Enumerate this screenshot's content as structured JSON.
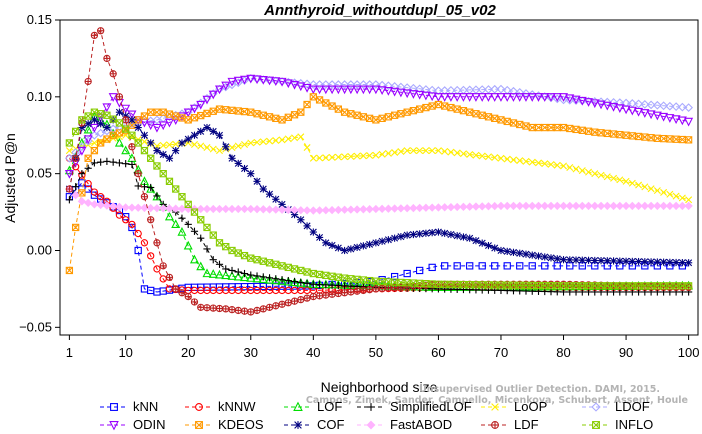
{
  "chart_data": {
    "type": "line",
    "title": "Annthyroid_withoutdupl_05_v02",
    "xlabel": "Neighborhood size",
    "ylabel": "Adjusted P@n",
    "xlim": [
      1,
      100
    ],
    "ylim": [
      -0.05,
      0.15
    ],
    "x_ticks": [
      1,
      10,
      20,
      30,
      40,
      50,
      60,
      70,
      80,
      90,
      100
    ],
    "y_ticks": [
      -0.05,
      0.0,
      0.05,
      0.1,
      0.15
    ],
    "x_tick_labels": [
      "1",
      "10",
      "20",
      "30",
      "40",
      "50",
      "60",
      "70",
      "80",
      "90",
      "100"
    ],
    "y_tick_labels": [
      "−0.05",
      "0.00",
      "0.05",
      "0.10",
      "0.15"
    ],
    "grid": false,
    "legend_position": "bottom",
    "series": [
      {
        "name": "kNN",
        "color": "#0000ff",
        "marker": "square",
        "dash": "4,3",
        "key_points": [
          [
            1,
            0.035
          ],
          [
            3,
            0.044
          ],
          [
            5,
            0.036
          ],
          [
            7,
            0.031
          ],
          [
            9,
            0.026
          ],
          [
            10,
            0.022
          ],
          [
            11,
            0.015
          ],
          [
            12,
            0.0
          ],
          [
            13,
            -0.025
          ],
          [
            15,
            -0.027
          ],
          [
            20,
            -0.024
          ],
          [
            40,
            -0.023
          ],
          [
            50,
            -0.02
          ],
          [
            55,
            -0.015
          ],
          [
            58,
            -0.012
          ],
          [
            60,
            -0.01
          ],
          [
            100,
            -0.01
          ]
        ]
      },
      {
        "name": "kNNW",
        "color": "#ff0000",
        "marker": "circle",
        "dash": "4,3",
        "key_points": [
          [
            1,
            0.06
          ],
          [
            3,
            0.049
          ],
          [
            5,
            0.038
          ],
          [
            7,
            0.032
          ],
          [
            9,
            0.023
          ],
          [
            11,
            0.017
          ],
          [
            13,
            0.005
          ],
          [
            15,
            -0.012
          ],
          [
            17,
            -0.025
          ],
          [
            20,
            -0.026
          ],
          [
            40,
            -0.026
          ],
          [
            60,
            -0.024
          ],
          [
            100,
            -0.024
          ]
        ]
      },
      {
        "name": "LOF",
        "color": "#00dd00",
        "marker": "triangle-up",
        "dash": "4,3",
        "key_points": [
          [
            1,
            0.052
          ],
          [
            3,
            0.07
          ],
          [
            5,
            0.087
          ],
          [
            7,
            0.082
          ],
          [
            9,
            0.07
          ],
          [
            11,
            0.06
          ],
          [
            13,
            0.045
          ],
          [
            15,
            0.035
          ],
          [
            17,
            0.022
          ],
          [
            19,
            0.012
          ],
          [
            21,
            -0.006
          ],
          [
            23,
            -0.015
          ],
          [
            30,
            -0.018
          ],
          [
            40,
            -0.022
          ],
          [
            60,
            -0.024
          ],
          [
            100,
            -0.023
          ]
        ]
      },
      {
        "name": "SimplifiedLOF",
        "color": "#000000",
        "marker": "plus",
        "dash": "4,3",
        "key_points": [
          [
            1,
            0.033
          ],
          [
            3,
            0.05
          ],
          [
            5,
            0.057
          ],
          [
            7,
            0.058
          ],
          [
            9,
            0.057
          ],
          [
            11,
            0.056
          ],
          [
            12,
            0.042
          ],
          [
            14,
            0.041
          ],
          [
            16,
            0.03
          ],
          [
            18,
            0.025
          ],
          [
            20,
            0.017
          ],
          [
            22,
            0.008
          ],
          [
            24,
            -0.006
          ],
          [
            26,
            -0.012
          ],
          [
            30,
            -0.016
          ],
          [
            40,
            -0.022
          ],
          [
            50,
            -0.024
          ],
          [
            60,
            -0.025
          ],
          [
            80,
            -0.027
          ],
          [
            100,
            -0.027
          ]
        ]
      },
      {
        "name": "LoOP",
        "color": "#ffee00",
        "marker": "x",
        "dash": "4,3",
        "key_points": [
          [
            1,
            0.065
          ],
          [
            5,
            0.07
          ],
          [
            10,
            0.075
          ],
          [
            15,
            0.068
          ],
          [
            20,
            0.07
          ],
          [
            25,
            0.065
          ],
          [
            30,
            0.07
          ],
          [
            35,
            0.072
          ],
          [
            38,
            0.074
          ],
          [
            40,
            0.06
          ],
          [
            50,
            0.062
          ],
          [
            55,
            0.065
          ],
          [
            60,
            0.065
          ],
          [
            70,
            0.06
          ],
          [
            80,
            0.055
          ],
          [
            90,
            0.045
          ],
          [
            100,
            0.033
          ]
        ]
      },
      {
        "name": "LDOF",
        "color": "#aaaaff",
        "marker": "diamond",
        "dash": "4,3",
        "key_points": [
          [
            1,
            0.06
          ],
          [
            5,
            0.075
          ],
          [
            10,
            0.082
          ],
          [
            15,
            0.085
          ],
          [
            20,
            0.09
          ],
          [
            25,
            0.105
          ],
          [
            30,
            0.112
          ],
          [
            40,
            0.108
          ],
          [
            50,
            0.108
          ],
          [
            60,
            0.104
          ],
          [
            70,
            0.105
          ],
          [
            80,
            0.098
          ],
          [
            90,
            0.096
          ],
          [
            100,
            0.093
          ]
        ]
      },
      {
        "name": "ODIN",
        "color": "#9900ff",
        "marker": "triangle-down",
        "dash": "4,3",
        "key_points": [
          [
            1,
            0.05
          ],
          [
            5,
            0.08
          ],
          [
            8,
            0.1
          ],
          [
            12,
            0.085
          ],
          [
            15,
            0.08
          ],
          [
            18,
            0.085
          ],
          [
            20,
            0.09
          ],
          [
            22,
            0.095
          ],
          [
            25,
            0.105
          ],
          [
            27,
            0.11
          ],
          [
            30,
            0.112
          ],
          [
            35,
            0.11
          ],
          [
            40,
            0.105
          ],
          [
            50,
            0.105
          ],
          [
            60,
            0.1
          ],
          [
            70,
            0.1
          ],
          [
            80,
            0.1
          ],
          [
            90,
            0.092
          ],
          [
            100,
            0.084
          ]
        ]
      },
      {
        "name": "KDEOS",
        "color": "#ff9900",
        "marker": "boxtimes",
        "dash": "4,3",
        "key_points": [
          [
            1,
            -0.013
          ],
          [
            2,
            0.015
          ],
          [
            4,
            0.06
          ],
          [
            6,
            0.07
          ],
          [
            8,
            0.075
          ],
          [
            10,
            0.078
          ],
          [
            12,
            0.085
          ],
          [
            14,
            0.09
          ],
          [
            16,
            0.09
          ],
          [
            20,
            0.085
          ],
          [
            25,
            0.092
          ],
          [
            30,
            0.09
          ],
          [
            35,
            0.085
          ],
          [
            38,
            0.09
          ],
          [
            40,
            0.1
          ],
          [
            45,
            0.09
          ],
          [
            50,
            0.085
          ],
          [
            55,
            0.09
          ],
          [
            60,
            0.095
          ],
          [
            65,
            0.09
          ],
          [
            70,
            0.085
          ],
          [
            75,
            0.08
          ],
          [
            80,
            0.08
          ],
          [
            85,
            0.077
          ],
          [
            90,
            0.075
          ],
          [
            95,
            0.073
          ],
          [
            100,
            0.072
          ]
        ]
      },
      {
        "name": "COF",
        "color": "#000080",
        "marker": "asterisk",
        "dash": "4,3",
        "key_points": [
          [
            1,
            0.04
          ],
          [
            3,
            0.08
          ],
          [
            5,
            0.085
          ],
          [
            7,
            0.08
          ],
          [
            9,
            0.09
          ],
          [
            11,
            0.085
          ],
          [
            13,
            0.075
          ],
          [
            15,
            0.065
          ],
          [
            17,
            0.06
          ],
          [
            19,
            0.07
          ],
          [
            21,
            0.075
          ],
          [
            23,
            0.08
          ],
          [
            25,
            0.075
          ],
          [
            27,
            0.06
          ],
          [
            30,
            0.05
          ],
          [
            32,
            0.04
          ],
          [
            35,
            0.03
          ],
          [
            38,
            0.02
          ],
          [
            40,
            0.012
          ],
          [
            42,
            0.005
          ],
          [
            45,
            0.0
          ],
          [
            50,
            0.005
          ],
          [
            55,
            0.01
          ],
          [
            60,
            0.012
          ],
          [
            65,
            0.008
          ],
          [
            70,
            0.0
          ],
          [
            80,
            -0.006
          ],
          [
            100,
            -0.008
          ]
        ]
      },
      {
        "name": "FastABOD",
        "color": "#ffb3ff",
        "marker": "diamond-filled",
        "dash": "4,3",
        "key_points": [
          [
            1,
            0.04
          ],
          [
            3,
            0.032
          ],
          [
            5,
            0.03
          ],
          [
            10,
            0.028
          ],
          [
            20,
            0.027
          ],
          [
            30,
            0.027
          ],
          [
            40,
            0.026
          ],
          [
            50,
            0.027
          ],
          [
            60,
            0.028
          ],
          [
            70,
            0.029
          ],
          [
            80,
            0.029
          ],
          [
            90,
            0.029
          ],
          [
            100,
            0.029
          ]
        ]
      },
      {
        "name": "LDF",
        "color": "#bb2222",
        "marker": "circle-plus",
        "dash": "4,3",
        "key_points": [
          [
            1,
            0.04
          ],
          [
            2,
            0.06
          ],
          [
            3,
            0.083
          ],
          [
            4,
            0.11
          ],
          [
            5,
            0.14
          ],
          [
            6,
            0.143
          ],
          [
            7,
            0.125
          ],
          [
            8,
            0.115
          ],
          [
            9,
            0.1
          ],
          [
            10,
            0.085
          ],
          [
            12,
            0.05
          ],
          [
            14,
            0.02
          ],
          [
            16,
            -0.01
          ],
          [
            18,
            -0.025
          ],
          [
            20,
            -0.03
          ],
          [
            22,
            -0.037
          ],
          [
            26,
            -0.038
          ],
          [
            30,
            -0.04
          ],
          [
            35,
            -0.035
          ],
          [
            40,
            -0.03
          ],
          [
            50,
            -0.025
          ],
          [
            60,
            -0.022
          ],
          [
            70,
            -0.022
          ],
          [
            80,
            -0.022
          ],
          [
            90,
            -0.023
          ],
          [
            100,
            -0.024
          ]
        ]
      },
      {
        "name": "INFLO",
        "color": "#88cc00",
        "marker": "boxtimes",
        "dash": "4,3",
        "key_points": [
          [
            1,
            0.07
          ],
          [
            3,
            0.085
          ],
          [
            5,
            0.09
          ],
          [
            7,
            0.088
          ],
          [
            9,
            0.083
          ],
          [
            11,
            0.075
          ],
          [
            13,
            0.065
          ],
          [
            15,
            0.055
          ],
          [
            17,
            0.045
          ],
          [
            19,
            0.035
          ],
          [
            21,
            0.025
          ],
          [
            23,
            0.015
          ],
          [
            25,
            0.005
          ],
          [
            27,
            0.0
          ],
          [
            30,
            -0.005
          ],
          [
            35,
            -0.01
          ],
          [
            40,
            -0.015
          ],
          [
            45,
            -0.018
          ],
          [
            50,
            -0.02
          ],
          [
            60,
            -0.022
          ],
          [
            80,
            -0.023
          ],
          [
            100,
            -0.023
          ]
        ]
      }
    ]
  },
  "watermark": {
    "line1": "Unsupervised Outlier Detection. DAMI, 2015.",
    "line2": "Campos, Zimek, Sander, Campello, Micenkova, Schubert, Assent, Houle"
  }
}
